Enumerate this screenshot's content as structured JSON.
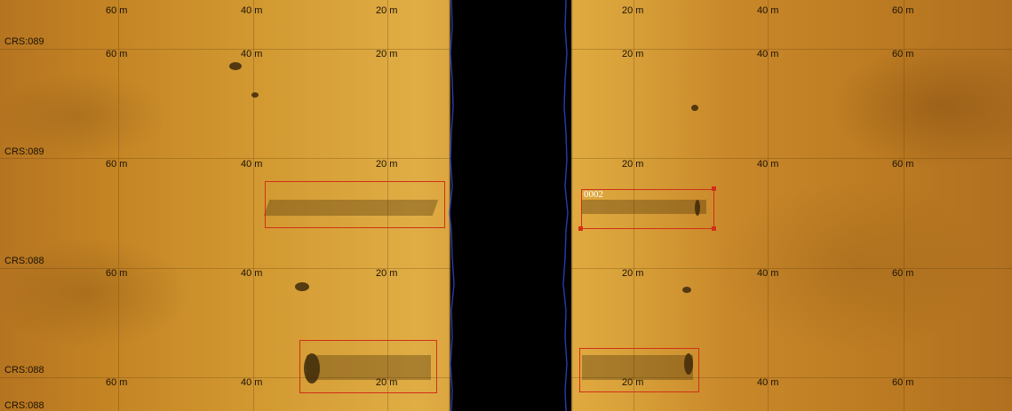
{
  "range_labels": [
    "60 m",
    "40 m",
    "20 m"
  ],
  "course_labels": [
    "CRS:089",
    "CRS:089",
    "CRS:088",
    "CRS:088",
    "CRS:088"
  ],
  "target": {
    "label": "0002"
  },
  "colors": {
    "seabed": "#c98a2a",
    "water_column": "#000000",
    "bottom_trace": "#2a3aa8",
    "target_box": "#d03018",
    "label_text": "#1a1206"
  }
}
